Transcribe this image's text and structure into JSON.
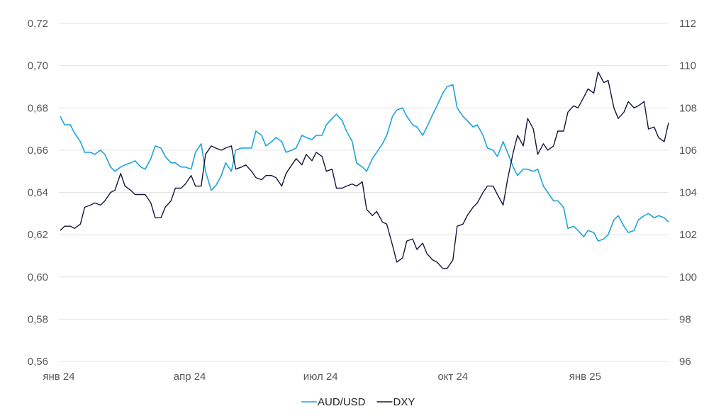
{
  "chart_data": {
    "type": "line",
    "title": "",
    "xlabel": "",
    "ylabel": "",
    "x_ticks": [
      "янв 24",
      "апр 24",
      "июл 24",
      "окт 24",
      "янв 25"
    ],
    "x_range": [
      "2024-01-01",
      "2025-02-28"
    ],
    "y_left": {
      "range": [
        0.56,
        0.72
      ],
      "ticks": [
        "0,72",
        "0,70",
        "0,68",
        "0,66",
        "0,64",
        "0,62",
        "0,60",
        "0,58",
        "0,56"
      ]
    },
    "y_right": {
      "range": [
        96,
        112
      ],
      "ticks": [
        "112",
        "110",
        "108",
        "106",
        "104",
        "102",
        "100",
        "98",
        "96"
      ]
    },
    "grid": "horizontal",
    "legend_position": "bottom-center",
    "series": [
      {
        "name": "AUD/USD",
        "axis": "left",
        "color": "#1ea3dc",
        "points": [
          [
            "2024-01-02",
            0.676
          ],
          [
            "2024-01-05",
            0.672
          ],
          [
            "2024-01-09",
            0.672
          ],
          [
            "2024-01-12",
            0.668
          ],
          [
            "2024-01-16",
            0.664
          ],
          [
            "2024-01-19",
            0.659
          ],
          [
            "2024-01-23",
            0.659
          ],
          [
            "2024-01-26",
            0.658
          ],
          [
            "2024-01-30",
            0.66
          ],
          [
            "2024-02-02",
            0.658
          ],
          [
            "2024-02-06",
            0.652
          ],
          [
            "2024-02-09",
            0.65
          ],
          [
            "2024-02-13",
            0.652
          ],
          [
            "2024-02-16",
            0.653
          ],
          [
            "2024-02-20",
            0.654
          ],
          [
            "2024-02-23",
            0.655
          ],
          [
            "2024-02-27",
            0.652
          ],
          [
            "2024-03-01",
            0.651
          ],
          [
            "2024-03-05",
            0.656
          ],
          [
            "2024-03-08",
            0.662
          ],
          [
            "2024-03-12",
            0.661
          ],
          [
            "2024-03-15",
            0.657
          ],
          [
            "2024-03-19",
            0.654
          ],
          [
            "2024-03-22",
            0.654
          ],
          [
            "2024-03-26",
            0.652
          ],
          [
            "2024-03-29",
            0.652
          ],
          [
            "2024-04-02",
            0.651
          ],
          [
            "2024-04-05",
            0.659
          ],
          [
            "2024-04-09",
            0.663
          ],
          [
            "2024-04-12",
            0.65
          ],
          [
            "2024-04-16",
            0.641
          ],
          [
            "2024-04-19",
            0.643
          ],
          [
            "2024-04-23",
            0.648
          ],
          [
            "2024-04-26",
            0.654
          ],
          [
            "2024-04-30",
            0.65
          ],
          [
            "2024-05-03",
            0.66
          ],
          [
            "2024-05-07",
            0.661
          ],
          [
            "2024-05-10",
            0.661
          ],
          [
            "2024-05-14",
            0.661
          ],
          [
            "2024-05-17",
            0.669
          ],
          [
            "2024-05-21",
            0.667
          ],
          [
            "2024-05-24",
            0.662
          ],
          [
            "2024-05-28",
            0.664
          ],
          [
            "2024-05-31",
            0.666
          ],
          [
            "2024-06-04",
            0.664
          ],
          [
            "2024-06-07",
            0.659
          ],
          [
            "2024-06-11",
            0.66
          ],
          [
            "2024-06-14",
            0.661
          ],
          [
            "2024-06-18",
            0.667
          ],
          [
            "2024-06-21",
            0.666
          ],
          [
            "2024-06-25",
            0.665
          ],
          [
            "2024-06-28",
            0.667
          ],
          [
            "2024-07-02",
            0.667
          ],
          [
            "2024-07-05",
            0.672
          ],
          [
            "2024-07-09",
            0.675
          ],
          [
            "2024-07-12",
            0.677
          ],
          [
            "2024-07-16",
            0.674
          ],
          [
            "2024-07-19",
            0.669
          ],
          [
            "2024-07-23",
            0.664
          ],
          [
            "2024-07-26",
            0.654
          ],
          [
            "2024-07-30",
            0.652
          ],
          [
            "2024-08-02",
            0.65
          ],
          [
            "2024-08-06",
            0.656
          ],
          [
            "2024-08-09",
            0.659
          ],
          [
            "2024-08-13",
            0.663
          ],
          [
            "2024-08-16",
            0.667
          ],
          [
            "2024-08-20",
            0.676
          ],
          [
            "2024-08-23",
            0.679
          ],
          [
            "2024-08-27",
            0.68
          ],
          [
            "2024-08-30",
            0.676
          ],
          [
            "2024-09-03",
            0.672
          ],
          [
            "2024-09-06",
            0.671
          ],
          [
            "2024-09-10",
            0.667
          ],
          [
            "2024-09-13",
            0.671
          ],
          [
            "2024-09-17",
            0.677
          ],
          [
            "2024-09-20",
            0.681
          ],
          [
            "2024-09-24",
            0.687
          ],
          [
            "2024-09-27",
            0.69
          ],
          [
            "2024-10-01",
            0.691
          ],
          [
            "2024-10-04",
            0.68
          ],
          [
            "2024-10-08",
            0.676
          ],
          [
            "2024-10-11",
            0.674
          ],
          [
            "2024-10-15",
            0.671
          ],
          [
            "2024-10-18",
            0.672
          ],
          [
            "2024-10-22",
            0.667
          ],
          [
            "2024-10-25",
            0.661
          ],
          [
            "2024-10-29",
            0.66
          ],
          [
            "2024-11-01",
            0.657
          ],
          [
            "2024-11-05",
            0.664
          ],
          [
            "2024-11-08",
            0.659
          ],
          [
            "2024-11-12",
            0.652
          ],
          [
            "2024-11-15",
            0.648
          ],
          [
            "2024-11-19",
            0.651
          ],
          [
            "2024-11-22",
            0.651
          ],
          [
            "2024-11-26",
            0.65
          ],
          [
            "2024-11-29",
            0.651
          ],
          [
            "2024-12-03",
            0.643
          ],
          [
            "2024-12-06",
            0.64
          ],
          [
            "2024-12-10",
            0.636
          ],
          [
            "2024-12-13",
            0.636
          ],
          [
            "2024-12-17",
            0.633
          ],
          [
            "2024-12-20",
            0.623
          ],
          [
            "2024-12-24",
            0.624
          ],
          [
            "2024-12-27",
            0.622
          ],
          [
            "2024-12-31",
            0.619
          ],
          [
            "2025-01-03",
            0.622
          ],
          [
            "2025-01-07",
            0.621
          ],
          [
            "2025-01-10",
            0.617
          ],
          [
            "2025-01-14",
            0.618
          ],
          [
            "2025-01-17",
            0.62
          ],
          [
            "2025-01-21",
            0.627
          ],
          [
            "2025-01-24",
            0.629
          ],
          [
            "2025-01-28",
            0.624
          ],
          [
            "2025-01-31",
            0.621
          ],
          [
            "2025-02-04",
            0.622
          ],
          [
            "2025-02-07",
            0.627
          ],
          [
            "2025-02-11",
            0.629
          ],
          [
            "2025-02-14",
            0.63
          ],
          [
            "2025-02-18",
            0.628
          ],
          [
            "2025-02-21",
            0.629
          ],
          [
            "2025-02-25",
            0.628
          ],
          [
            "2025-02-28",
            0.626
          ]
        ]
      },
      {
        "name": "DXY",
        "axis": "right",
        "color": "#14163c",
        "points": [
          [
            "2024-01-02",
            102.2
          ],
          [
            "2024-01-05",
            102.4
          ],
          [
            "2024-01-09",
            102.4
          ],
          [
            "2024-01-12",
            102.3
          ],
          [
            "2024-01-16",
            102.5
          ],
          [
            "2024-01-19",
            103.3
          ],
          [
            "2024-01-23",
            103.4
          ],
          [
            "2024-01-26",
            103.5
          ],
          [
            "2024-01-30",
            103.4
          ],
          [
            "2024-02-02",
            103.6
          ],
          [
            "2024-02-06",
            104.0
          ],
          [
            "2024-02-09",
            104.1
          ],
          [
            "2024-02-13",
            104.9
          ],
          [
            "2024-02-16",
            104.3
          ],
          [
            "2024-02-20",
            104.1
          ],
          [
            "2024-02-23",
            103.9
          ],
          [
            "2024-02-27",
            103.9
          ],
          [
            "2024-03-01",
            103.9
          ],
          [
            "2024-03-05",
            103.5
          ],
          [
            "2024-03-08",
            102.8
          ],
          [
            "2024-03-12",
            102.8
          ],
          [
            "2024-03-15",
            103.3
          ],
          [
            "2024-03-19",
            103.6
          ],
          [
            "2024-03-22",
            104.2
          ],
          [
            "2024-03-26",
            104.2
          ],
          [
            "2024-03-29",
            104.4
          ],
          [
            "2024-04-02",
            104.8
          ],
          [
            "2024-04-05",
            104.3
          ],
          [
            "2024-04-09",
            104.3
          ],
          [
            "2024-04-12",
            105.8
          ],
          [
            "2024-04-16",
            106.2
          ],
          [
            "2024-04-19",
            106.1
          ],
          [
            "2024-04-23",
            106.0
          ],
          [
            "2024-04-26",
            106.1
          ],
          [
            "2024-04-30",
            106.2
          ],
          [
            "2024-05-03",
            105.1
          ],
          [
            "2024-05-07",
            105.2
          ],
          [
            "2024-05-10",
            105.3
          ],
          [
            "2024-05-14",
            105.0
          ],
          [
            "2024-05-17",
            104.7
          ],
          [
            "2024-05-21",
            104.6
          ],
          [
            "2024-05-24",
            104.8
          ],
          [
            "2024-05-28",
            104.8
          ],
          [
            "2024-05-31",
            104.7
          ],
          [
            "2024-06-04",
            104.3
          ],
          [
            "2024-06-07",
            104.9
          ],
          [
            "2024-06-11",
            105.3
          ],
          [
            "2024-06-14",
            105.6
          ],
          [
            "2024-06-18",
            105.3
          ],
          [
            "2024-06-21",
            105.8
          ],
          [
            "2024-06-25",
            105.5
          ],
          [
            "2024-06-28",
            105.9
          ],
          [
            "2024-07-02",
            105.7
          ],
          [
            "2024-07-05",
            105.0
          ],
          [
            "2024-07-09",
            105.1
          ],
          [
            "2024-07-12",
            104.2
          ],
          [
            "2024-07-16",
            104.2
          ],
          [
            "2024-07-19",
            104.3
          ],
          [
            "2024-07-23",
            104.4
          ],
          [
            "2024-07-26",
            104.3
          ],
          [
            "2024-07-30",
            104.5
          ],
          [
            "2024-08-02",
            103.2
          ],
          [
            "2024-08-06",
            102.9
          ],
          [
            "2024-08-09",
            103.1
          ],
          [
            "2024-08-13",
            102.6
          ],
          [
            "2024-08-16",
            102.5
          ],
          [
            "2024-08-20",
            101.5
          ],
          [
            "2024-08-23",
            100.7
          ],
          [
            "2024-08-27",
            100.9
          ],
          [
            "2024-08-30",
            101.7
          ],
          [
            "2024-09-03",
            101.8
          ],
          [
            "2024-09-06",
            101.3
          ],
          [
            "2024-09-10",
            101.6
          ],
          [
            "2024-09-13",
            101.1
          ],
          [
            "2024-09-17",
            100.8
          ],
          [
            "2024-09-20",
            100.7
          ],
          [
            "2024-09-24",
            100.4
          ],
          [
            "2024-09-27",
            100.4
          ],
          [
            "2024-10-01",
            100.8
          ],
          [
            "2024-10-04",
            102.4
          ],
          [
            "2024-10-08",
            102.5
          ],
          [
            "2024-10-11",
            102.9
          ],
          [
            "2024-10-15",
            103.3
          ],
          [
            "2024-10-18",
            103.5
          ],
          [
            "2024-10-22",
            104.0
          ],
          [
            "2024-10-25",
            104.3
          ],
          [
            "2024-10-29",
            104.3
          ],
          [
            "2024-11-01",
            103.9
          ],
          [
            "2024-11-05",
            103.4
          ],
          [
            "2024-11-08",
            104.6
          ],
          [
            "2024-11-12",
            105.9
          ],
          [
            "2024-11-15",
            106.7
          ],
          [
            "2024-11-19",
            106.2
          ],
          [
            "2024-11-22",
            107.5
          ],
          [
            "2024-11-26",
            107.0
          ],
          [
            "2024-11-29",
            105.8
          ],
          [
            "2024-12-03",
            106.3
          ],
          [
            "2024-12-06",
            106.0
          ],
          [
            "2024-12-10",
            106.2
          ],
          [
            "2024-12-13",
            106.9
          ],
          [
            "2024-12-17",
            106.9
          ],
          [
            "2024-12-20",
            107.8
          ],
          [
            "2024-12-24",
            108.1
          ],
          [
            "2024-12-27",
            108.0
          ],
          [
            "2024-12-31",
            108.5
          ],
          [
            "2025-01-03",
            108.9
          ],
          [
            "2025-01-07",
            108.7
          ],
          [
            "2025-01-10",
            109.7
          ],
          [
            "2025-01-14",
            109.2
          ],
          [
            "2025-01-17",
            109.3
          ],
          [
            "2025-01-21",
            108.0
          ],
          [
            "2025-01-24",
            107.5
          ],
          [
            "2025-01-28",
            107.8
          ],
          [
            "2025-01-31",
            108.3
          ],
          [
            "2025-02-04",
            108.0
          ],
          [
            "2025-02-07",
            108.1
          ],
          [
            "2025-02-11",
            108.3
          ],
          [
            "2025-02-14",
            107.0
          ],
          [
            "2025-02-18",
            107.1
          ],
          [
            "2025-02-21",
            106.6
          ],
          [
            "2025-02-25",
            106.4
          ],
          [
            "2025-02-28",
            107.3
          ]
        ]
      }
    ]
  }
}
